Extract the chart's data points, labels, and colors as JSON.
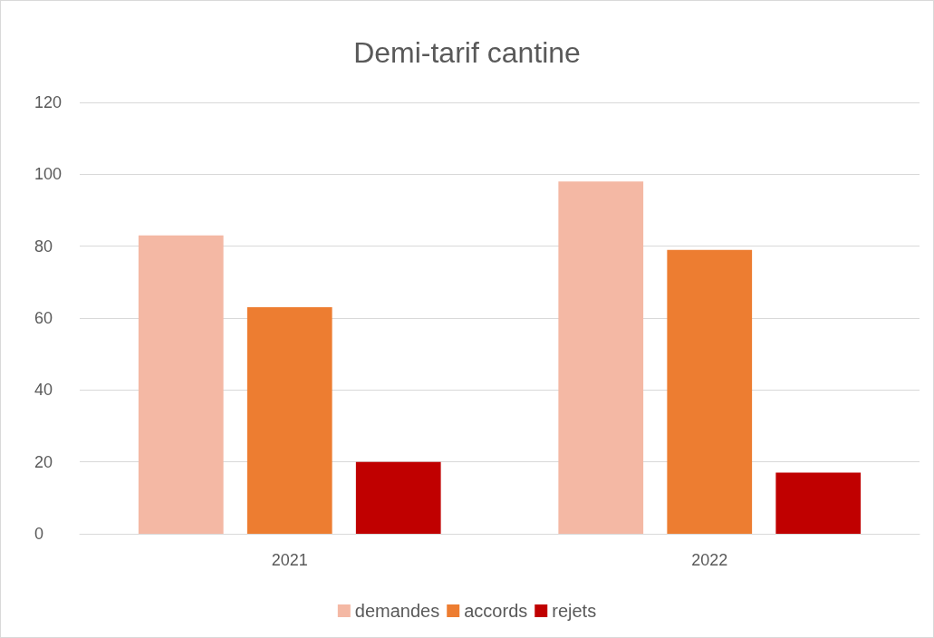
{
  "chart_data": {
    "type": "bar",
    "title": "Demi-tarif cantine",
    "categories": [
      "2021",
      "2022"
    ],
    "series": [
      {
        "name": "demandes",
        "color": "#f4b8a4",
        "values": [
          83,
          98
        ]
      },
      {
        "name": "accords",
        "color": "#ed7d31",
        "values": [
          63,
          79
        ]
      },
      {
        "name": "rejets",
        "color": "#c00000",
        "values": [
          20,
          17
        ]
      }
    ],
    "ylim": [
      0,
      120
    ],
    "yticks": [
      0,
      20,
      40,
      60,
      80,
      100,
      120
    ],
    "grid": "y",
    "legend": "bottom"
  }
}
